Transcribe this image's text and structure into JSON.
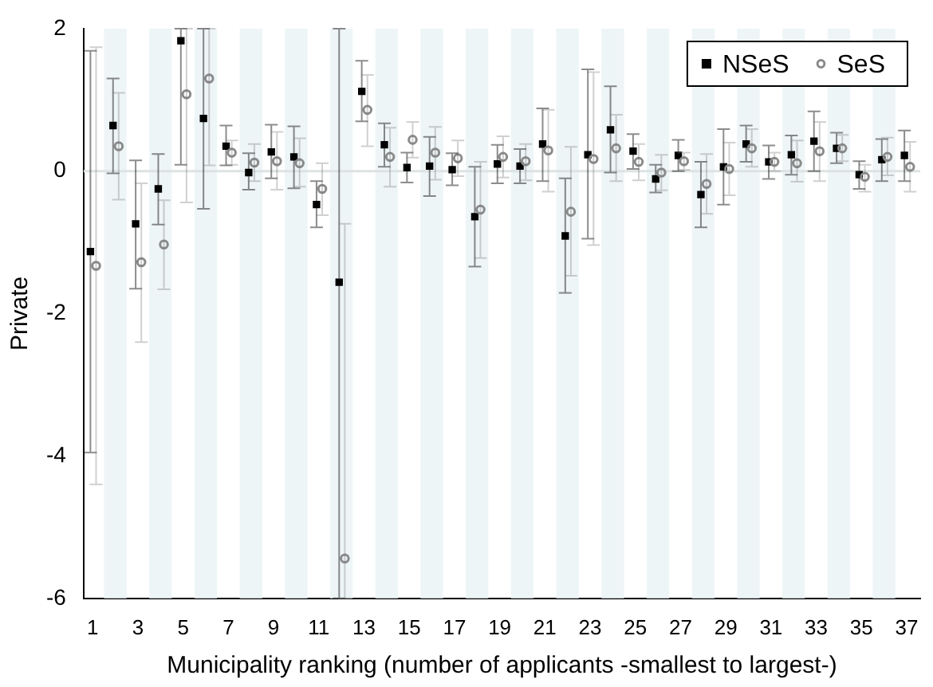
{
  "chart_data": {
    "type": "scatter",
    "xlabel": "Municipality ranking (number of applicants -smallest to largest-)",
    "ylabel": "Private",
    "xlim": [
      0.6,
      37.6
    ],
    "xticks": [
      1,
      3,
      5,
      7,
      9,
      11,
      13,
      15,
      17,
      19,
      21,
      23,
      25,
      27,
      29,
      31,
      33,
      35,
      37
    ],
    "ylim": [
      -6,
      2
    ],
    "yticks": [
      -6,
      -4,
      -2,
      0,
      2
    ],
    "grid": false,
    "legend": "top right",
    "ref_lines": [
      {
        "axis": "y",
        "value": 0,
        "color": "#dde3e3"
      }
    ],
    "bands": [
      {
        "axis": "x",
        "from": 1.5,
        "to": 2.5,
        "color": "#eef5f7"
      },
      {
        "axis": "x",
        "from": 3.5,
        "to": 4.5,
        "color": "#eef5f7"
      },
      {
        "axis": "x",
        "from": 5.5,
        "to": 6.5,
        "color": "#eef5f7"
      },
      {
        "axis": "x",
        "from": 7.5,
        "to": 8.5,
        "color": "#eef5f7"
      },
      {
        "axis": "x",
        "from": 9.5,
        "to": 10.5,
        "color": "#eef5f7"
      },
      {
        "axis": "x",
        "from": 11.5,
        "to": 12.5,
        "color": "#eef5f7"
      },
      {
        "axis": "x",
        "from": 13.5,
        "to": 14.5,
        "color": "#eef5f7"
      },
      {
        "axis": "x",
        "from": 15.5,
        "to": 16.5,
        "color": "#eef5f7"
      },
      {
        "axis": "x",
        "from": 17.5,
        "to": 18.5,
        "color": "#eef5f7"
      },
      {
        "axis": "x",
        "from": 19.5,
        "to": 20.5,
        "color": "#eef5f7"
      },
      {
        "axis": "x",
        "from": 21.5,
        "to": 22.5,
        "color": "#eef5f7"
      },
      {
        "axis": "x",
        "from": 23.5,
        "to": 24.5,
        "color": "#eef5f7"
      },
      {
        "axis": "x",
        "from": 25.5,
        "to": 26.5,
        "color": "#eef5f7"
      },
      {
        "axis": "x",
        "from": 27.5,
        "to": 28.5,
        "color": "#eef5f7"
      },
      {
        "axis": "x",
        "from": 29.5,
        "to": 30.5,
        "color": "#eef5f7"
      },
      {
        "axis": "x",
        "from": 31.5,
        "to": 32.5,
        "color": "#eef5f7"
      },
      {
        "axis": "x",
        "from": 33.5,
        "to": 34.5,
        "color": "#eef5f7"
      },
      {
        "axis": "x",
        "from": 35.5,
        "to": 36.5,
        "color": "#eef5f7"
      }
    ],
    "series": [
      {
        "name": "NSeS",
        "color": "#000000",
        "marker": "square",
        "x": [
          0.9,
          1.9,
          2.9,
          3.9,
          4.9,
          5.9,
          6.9,
          7.9,
          8.9,
          9.9,
          10.9,
          11.9,
          12.9,
          13.9,
          14.9,
          15.9,
          16.9,
          17.9,
          18.9,
          19.9,
          20.9,
          21.9,
          22.9,
          23.9,
          24.9,
          25.9,
          26.9,
          27.9,
          28.9,
          29.9,
          30.9,
          31.9,
          32.9,
          33.9,
          34.9,
          35.9,
          36.9
        ],
        "values": [
          -1.13,
          0.64,
          -0.74,
          -0.25,
          1.83,
          0.74,
          0.35,
          -0.02,
          0.27,
          0.2,
          -0.47,
          -1.56,
          1.12,
          0.37,
          0.05,
          0.07,
          0.02,
          -0.64,
          0.1,
          0.07,
          0.38,
          -0.91,
          0.23,
          0.58,
          0.28,
          -0.11,
          0.22,
          -0.33,
          0.06,
          0.38,
          0.13,
          0.23,
          0.42,
          0.32,
          -0.05,
          0.16,
          0.22
        ],
        "errors": [
          [
            -3.95,
            1.69
          ],
          [
            -0.03,
            1.3
          ],
          [
            -1.65,
            0.15
          ],
          [
            -0.75,
            0.24
          ],
          [
            0.09,
            2
          ],
          [
            -0.53,
            2
          ],
          [
            0.08,
            0.64
          ],
          [
            -0.26,
            0.25
          ],
          [
            -0.1,
            0.65
          ],
          [
            -0.24,
            0.63
          ],
          [
            -0.79,
            -0.14
          ],
          [
            -6,
            2
          ],
          [
            0.7,
            1.55
          ],
          [
            0.06,
            0.67
          ],
          [
            -0.16,
            0.26
          ],
          [
            -0.35,
            0.48
          ],
          [
            -0.2,
            0.25
          ],
          [
            -1.34,
            0.06
          ],
          [
            -0.17,
            0.37
          ],
          [
            -0.17,
            0.31
          ],
          [
            -0.14,
            0.88
          ],
          [
            -1.71,
            -0.1
          ],
          [
            -0.95,
            1.43
          ],
          [
            -0.02,
            1.19
          ],
          [
            0.03,
            0.52
          ],
          [
            -0.3,
            0.09
          ],
          [
            0,
            0.44
          ],
          [
            -0.79,
            0.13
          ],
          [
            -0.47,
            0.59
          ],
          [
            0.13,
            0.64
          ],
          [
            -0.11,
            0.36
          ],
          [
            -0.05,
            0.5
          ],
          [
            0,
            0.84
          ],
          [
            0.11,
            0.54
          ],
          [
            -0.25,
            0.14
          ],
          [
            -0.14,
            0.45
          ],
          [
            -0.14,
            0.57
          ]
        ]
      },
      {
        "name": "SeS",
        "color": "#8a8a8a",
        "marker": "circle",
        "x": [
          1.15,
          2.15,
          3.15,
          4.15,
          5.15,
          6.15,
          7.15,
          8.15,
          9.15,
          10.15,
          11.15,
          12.15,
          13.15,
          14.15,
          15.15,
          16.15,
          17.15,
          18.15,
          19.15,
          20.15,
          21.15,
          22.15,
          23.15,
          24.15,
          25.15,
          26.15,
          27.15,
          28.15,
          29.15,
          30.15,
          31.15,
          32.15,
          33.15,
          34.15,
          35.15,
          36.15,
          37.15
        ],
        "values": [
          -1.33,
          0.35,
          -1.28,
          -1.03,
          1.08,
          1.3,
          0.26,
          0.12,
          0.14,
          0.11,
          -0.25,
          -5.44,
          0.86,
          0.2,
          0.44,
          0.26,
          0.18,
          -0.54,
          0.2,
          0.14,
          0.29,
          -0.57,
          0.17,
          0.32,
          0.13,
          -0.02,
          0.14,
          -0.18,
          0.03,
          0.32,
          0.13,
          0.11,
          0.28,
          0.32,
          -0.08,
          0.2,
          0.06
        ],
        "errors": [
          [
            -4.4,
            1.74
          ],
          [
            -0.4,
            1.1
          ],
          [
            -2.4,
            -0.17
          ],
          [
            -1.66,
            -0.41
          ],
          [
            -0.44,
            2
          ],
          [
            0.08,
            2
          ],
          [
            0.09,
            0.43
          ],
          [
            -0.14,
            0.38
          ],
          [
            -0.26,
            0.55
          ],
          [
            -0.22,
            0.46
          ],
          [
            -0.62,
            0.11
          ],
          [
            -6,
            -0.74
          ],
          [
            0.35,
            1.35
          ],
          [
            -0.22,
            0.61
          ],
          [
            0.19,
            0.69
          ],
          [
            -0.12,
            0.62
          ],
          [
            -0.07,
            0.43
          ],
          [
            -1.22,
            0.13
          ],
          [
            -0.09,
            0.49
          ],
          [
            -0.13,
            0.38
          ],
          [
            -0.29,
            0.86
          ],
          [
            -1.47,
            0.34
          ],
          [
            -1.04,
            1.39
          ],
          [
            -0.14,
            0.79
          ],
          [
            -0.13,
            0.38
          ],
          [
            -0.27,
            0.23
          ],
          [
            0.02,
            0.26
          ],
          [
            -0.6,
            0.24
          ],
          [
            -0.34,
            0.4
          ],
          [
            0.06,
            0.59
          ],
          [
            0,
            0.26
          ],
          [
            -0.15,
            0.43
          ],
          [
            -0.14,
            0.69
          ],
          [
            0.14,
            0.51
          ],
          [
            -0.29,
            0.09
          ],
          [
            -0.06,
            0.47
          ],
          [
            -0.29,
            0.41
          ]
        ]
      }
    ]
  }
}
